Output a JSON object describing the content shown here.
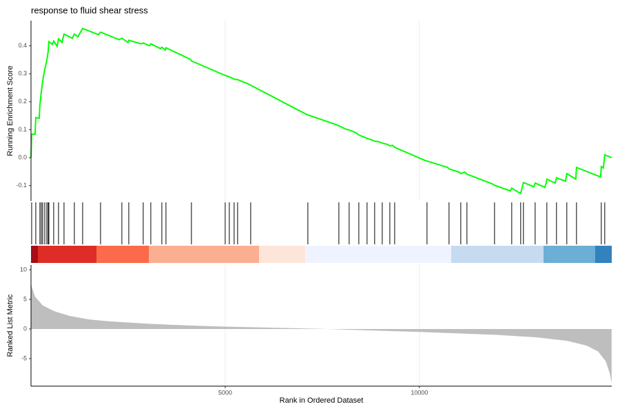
{
  "chart_data": [
    {
      "type": "line",
      "title": "response to fluid shear stress",
      "y_label": "Running Enrichment Score",
      "color": "#00ff00",
      "grid": true,
      "xlim": [
        1,
        14950
      ],
      "xticks": [
        5000,
        10000
      ],
      "ylim": [
        -0.155,
        0.49
      ],
      "yticks": [
        -0.1,
        {
          "value": 0,
          "label": "0.0"
        },
        0.1,
        0.2,
        0.3,
        0.4
      ],
      "x": [
        1,
        18,
        106,
        124,
        213,
        230,
        266,
        301,
        355,
        408,
        443,
        461,
        550,
        585,
        674,
        709,
        798,
        851,
        1064,
        1117,
        1206,
        1330,
        1738,
        1791,
        2270,
        2340,
        2500,
        2518,
        2837,
        2890,
        3050,
        3085,
        3333,
        3369,
        3457,
        3475,
        4113,
        4131,
        5000,
        5106,
        5230,
        5319,
        5585,
        5656,
        7074,
        7128,
        7837,
        7926,
        8121,
        8191,
        8369,
        8440,
        8564,
        8652,
        8794,
        8847,
        8954,
        9043,
        9184,
        9238,
        9309,
        9362,
        10142,
        10195,
        10727,
        10762,
        11028,
        11064,
        11170,
        11223,
        11879,
        11933,
        12340,
        12376,
        12535,
        12606,
        12677,
        12943,
        12979,
        13227,
        13262,
        13280,
        13493,
        13528,
        13759,
        13794,
        14025,
        14043,
        14663,
        14681,
        14734,
        14770,
        14947
      ],
      "values": [
        0,
        0.084,
        0.084,
        0.143,
        0.141,
        0.188,
        0.235,
        0.274,
        0.316,
        0.348,
        0.38,
        0.415,
        0.405,
        0.417,
        0.398,
        0.425,
        0.412,
        0.442,
        0.427,
        0.442,
        0.432,
        0.462,
        0.44,
        0.449,
        0.422,
        0.427,
        0.412,
        0.42,
        0.407,
        0.41,
        0.4,
        0.407,
        0.39,
        0.395,
        0.385,
        0.393,
        0.351,
        0.346,
        0.294,
        0.289,
        0.281,
        0.279,
        0.264,
        0.259,
        0.156,
        0.153,
        0.119,
        0.114,
        0.101,
        0.099,
        0.089,
        0.081,
        0.074,
        0.069,
        0.062,
        0.059,
        0.057,
        0.052,
        0.047,
        0.042,
        0.044,
        0.037,
        -0.01,
        -0.012,
        -0.035,
        -0.04,
        -0.052,
        -0.057,
        -0.052,
        -0.059,
        -0.094,
        -0.099,
        -0.119,
        -0.109,
        -0.123,
        -0.128,
        -0.089,
        -0.104,
        -0.091,
        -0.106,
        -0.091,
        -0.077,
        -0.091,
        -0.072,
        -0.084,
        -0.057,
        -0.077,
        -0.035,
        -0.069,
        -0.032,
        -0.037,
        0.01,
        0
      ]
    },
    {
      "type": "rug",
      "color": "#000000",
      "xlim": [
        1,
        14950
      ],
      "x": [
        18,
        124,
        230,
        266,
        301,
        355,
        408,
        443,
        461,
        585,
        709,
        851,
        1117,
        1330,
        1791,
        2340,
        2518,
        2890,
        3085,
        3369,
        3475,
        4131,
        5000,
        5106,
        5230,
        5319,
        5656,
        7128,
        7926,
        8191,
        8440,
        8652,
        8847,
        9043,
        9238,
        9362,
        10195,
        10762,
        11064,
        11223,
        11933,
        12376,
        12606,
        12677,
        12979,
        13280,
        13528,
        13794,
        14043,
        14681,
        14770
      ]
    },
    {
      "type": "area",
      "x_label": "Rank in Ordered Dataset",
      "y_label": "Ranked List Metric",
      "color": "#bebebe",
      "grid": true,
      "xlim": [
        1,
        14950
      ],
      "xticks": [
        5000,
        10000
      ],
      "ylim": [
        -9.65,
        10.8
      ],
      "yticks": [
        -5,
        0,
        5,
        10
      ],
      "x": [
        1,
        100,
        300,
        600,
        1000,
        1500,
        2000,
        3000,
        4000,
        5000,
        6000,
        7000,
        7500,
        8000,
        9000,
        10000,
        11000,
        12000,
        13000,
        13800,
        14300,
        14600,
        14800,
        14900,
        14947
      ],
      "values": [
        7.6,
        5.5,
        4,
        3,
        2.2,
        1.6,
        1.3,
        0.9,
        0.6,
        0.4,
        0.25,
        0.1,
        0.02,
        -0.1,
        -0.3,
        -0.5,
        -0.75,
        -1,
        -1.4,
        -2,
        -2.8,
        -3.8,
        -5.5,
        -7.5,
        -9.2
      ]
    }
  ]
}
